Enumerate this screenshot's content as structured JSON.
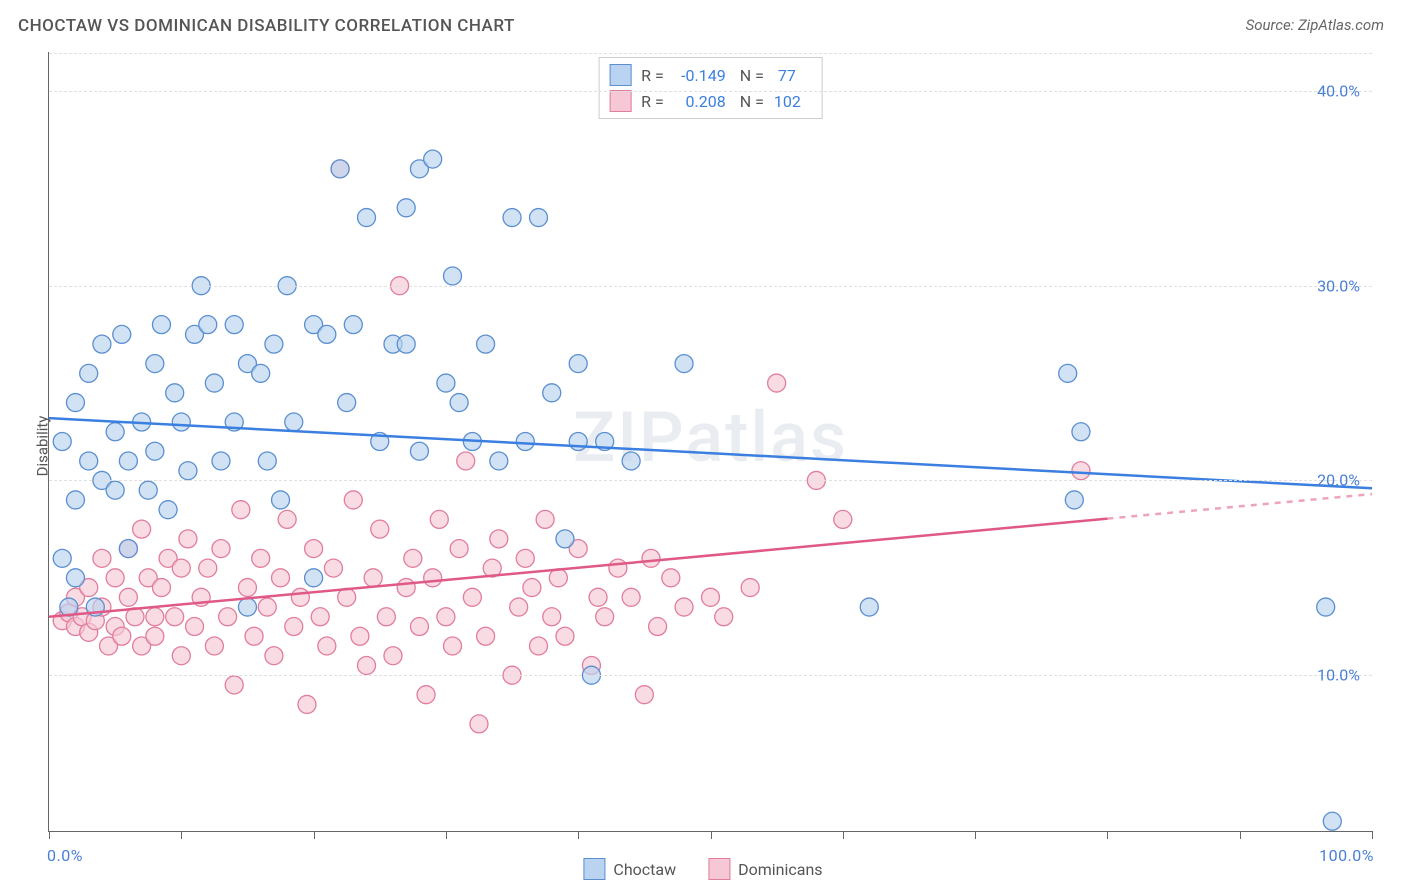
{
  "chart": {
    "type": "scatter",
    "title": "CHOCTAW VS DOMINICAN DISABILITY CORRELATION CHART",
    "source_label": "Source: ZipAtlas.com",
    "watermark": "ZIPatlas",
    "ylabel": "Disability",
    "background_color": "#ffffff",
    "grid_color": "#e0e0e0",
    "axis_color": "#666666",
    "value_color": "#3b7fe0",
    "text_color": "#555555",
    "title_fontsize": 17,
    "label_fontsize": 15,
    "tick_fontsize": 16,
    "xlim": [
      0,
      100
    ],
    "ylim": [
      2,
      42
    ],
    "x_major_ticks": [
      0,
      20,
      40,
      60,
      80,
      100
    ],
    "x_minor_ticks": [
      10,
      30,
      50,
      70,
      90
    ],
    "x_tick_labels": {
      "0": "0.0%",
      "100": "100.0%"
    },
    "y_gridlines": [
      10,
      20,
      30,
      40
    ],
    "y_tick_labels": {
      "10": "10.0%",
      "20": "20.0%",
      "30": "30.0%",
      "40": "40.0%"
    },
    "marker_radius": 9,
    "marker_stroke_width": 1.3,
    "trend_line_width": 2.5,
    "series": [
      {
        "name": "Choctaw",
        "fill": "#b9d3f0",
        "stroke": "#5b8fd0",
        "line_color": "#3b7fe0",
        "R": "-0.149",
        "N": "77",
        "trend": {
          "x1": 0,
          "y1": 23.2,
          "x2": 100,
          "y2": 19.6,
          "dash_from_x": null
        },
        "points": [
          [
            1,
            16
          ],
          [
            1,
            22
          ],
          [
            1.5,
            13.5
          ],
          [
            2,
            19
          ],
          [
            2,
            15
          ],
          [
            2,
            24
          ],
          [
            3,
            21
          ],
          [
            3,
            25.5
          ],
          [
            3.5,
            13.5
          ],
          [
            4,
            20
          ],
          [
            4,
            27
          ],
          [
            5,
            19.5
          ],
          [
            5,
            22.5
          ],
          [
            5.5,
            27.5
          ],
          [
            6,
            21
          ],
          [
            6,
            16.5
          ],
          [
            7,
            23
          ],
          [
            7.5,
            19.5
          ],
          [
            8,
            26
          ],
          [
            8,
            21.5
          ],
          [
            8.5,
            28
          ],
          [
            9,
            18.5
          ],
          [
            9.5,
            24.5
          ],
          [
            10,
            23
          ],
          [
            10.5,
            20.5
          ],
          [
            11,
            27.5
          ],
          [
            11.5,
            30
          ],
          [
            12,
            28
          ],
          [
            12.5,
            25
          ],
          [
            13,
            21
          ],
          [
            14,
            23
          ],
          [
            14,
            28
          ],
          [
            15,
            26
          ],
          [
            15,
            13.5
          ],
          [
            16,
            25.5
          ],
          [
            16.5,
            21
          ],
          [
            17,
            27
          ],
          [
            17.5,
            19
          ],
          [
            18,
            30
          ],
          [
            18.5,
            23
          ],
          [
            20,
            28
          ],
          [
            20,
            15
          ],
          [
            21,
            27.5
          ],
          [
            22,
            36
          ],
          [
            22.5,
            24
          ],
          [
            23,
            28
          ],
          [
            24,
            33.5
          ],
          [
            25,
            22
          ],
          [
            26,
            27
          ],
          [
            27,
            34
          ],
          [
            27,
            27
          ],
          [
            28,
            21.5
          ],
          [
            28,
            36
          ],
          [
            29,
            36.5
          ],
          [
            30,
            25
          ],
          [
            30.5,
            30.5
          ],
          [
            31,
            24
          ],
          [
            32,
            22
          ],
          [
            33,
            27
          ],
          [
            34,
            21
          ],
          [
            35,
            33.5
          ],
          [
            36,
            22
          ],
          [
            37,
            33.5
          ],
          [
            38,
            24.5
          ],
          [
            39,
            17
          ],
          [
            40,
            22
          ],
          [
            40,
            26
          ],
          [
            41,
            10
          ],
          [
            42,
            22
          ],
          [
            44,
            21
          ],
          [
            48,
            26
          ],
          [
            62,
            13.5
          ],
          [
            77,
            25.5
          ],
          [
            77.5,
            19
          ],
          [
            78,
            22.5
          ],
          [
            96.5,
            13.5
          ],
          [
            97,
            2.5
          ]
        ]
      },
      {
        "name": "Dominicans",
        "fill": "#f6c7d4",
        "stroke": "#e17d9d",
        "line_color": "#e05885",
        "R": "0.208",
        "N": "102",
        "trend": {
          "x1": 0,
          "y1": 13.0,
          "x2": 100,
          "y2": 19.3,
          "dash_from_x": 80
        },
        "points": [
          [
            1,
            12.8
          ],
          [
            1.5,
            13.2
          ],
          [
            2,
            12.5
          ],
          [
            2,
            14
          ],
          [
            2.5,
            13
          ],
          [
            3,
            12.2
          ],
          [
            3,
            14.5
          ],
          [
            3.5,
            12.8
          ],
          [
            4,
            13.5
          ],
          [
            4,
            16
          ],
          [
            4.5,
            11.5
          ],
          [
            5,
            12.5
          ],
          [
            5,
            15
          ],
          [
            5.5,
            12
          ],
          [
            6,
            14
          ],
          [
            6,
            16.5
          ],
          [
            6.5,
            13
          ],
          [
            7,
            11.5
          ],
          [
            7,
            17.5
          ],
          [
            7.5,
            15
          ],
          [
            8,
            13
          ],
          [
            8,
            12
          ],
          [
            8.5,
            14.5
          ],
          [
            9,
            16
          ],
          [
            9.5,
            13
          ],
          [
            10,
            11
          ],
          [
            10,
            15.5
          ],
          [
            10.5,
            17
          ],
          [
            11,
            12.5
          ],
          [
            11.5,
            14
          ],
          [
            12,
            15.5
          ],
          [
            12.5,
            11.5
          ],
          [
            13,
            16.5
          ],
          [
            13.5,
            13
          ],
          [
            14,
            9.5
          ],
          [
            14.5,
            18.5
          ],
          [
            15,
            14.5
          ],
          [
            15.5,
            12
          ],
          [
            16,
            16
          ],
          [
            16.5,
            13.5
          ],
          [
            17,
            11
          ],
          [
            17.5,
            15
          ],
          [
            18,
            18
          ],
          [
            18.5,
            12.5
          ],
          [
            19,
            14
          ],
          [
            19.5,
            8.5
          ],
          [
            20,
            16.5
          ],
          [
            20.5,
            13
          ],
          [
            21,
            11.5
          ],
          [
            21.5,
            15.5
          ],
          [
            22,
            36
          ],
          [
            22.5,
            14
          ],
          [
            23,
            19
          ],
          [
            23.5,
            12
          ],
          [
            24,
            10.5
          ],
          [
            24.5,
            15
          ],
          [
            25,
            17.5
          ],
          [
            25.5,
            13
          ],
          [
            26,
            11
          ],
          [
            26.5,
            30
          ],
          [
            27,
            14.5
          ],
          [
            27.5,
            16
          ],
          [
            28,
            12.5
          ],
          [
            28.5,
            9
          ],
          [
            29,
            15
          ],
          [
            29.5,
            18
          ],
          [
            30,
            13
          ],
          [
            30.5,
            11.5
          ],
          [
            31,
            16.5
          ],
          [
            31.5,
            21
          ],
          [
            32,
            14
          ],
          [
            32.5,
            7.5
          ],
          [
            33,
            12
          ],
          [
            33.5,
            15.5
          ],
          [
            34,
            17
          ],
          [
            35,
            10
          ],
          [
            35.5,
            13.5
          ],
          [
            36,
            16
          ],
          [
            36.5,
            14.5
          ],
          [
            37,
            11.5
          ],
          [
            37.5,
            18
          ],
          [
            38,
            13
          ],
          [
            38.5,
            15
          ],
          [
            39,
            12
          ],
          [
            40,
            16.5
          ],
          [
            41,
            10.5
          ],
          [
            41.5,
            14
          ],
          [
            42,
            13
          ],
          [
            43,
            15.5
          ],
          [
            44,
            14
          ],
          [
            45,
            9
          ],
          [
            45.5,
            16
          ],
          [
            46,
            12.5
          ],
          [
            47,
            15
          ],
          [
            48,
            13.5
          ],
          [
            50,
            14
          ],
          [
            51,
            13
          ],
          [
            53,
            14.5
          ],
          [
            55,
            25
          ],
          [
            58,
            20
          ],
          [
            60,
            18
          ],
          [
            78,
            20.5
          ]
        ]
      }
    ]
  }
}
